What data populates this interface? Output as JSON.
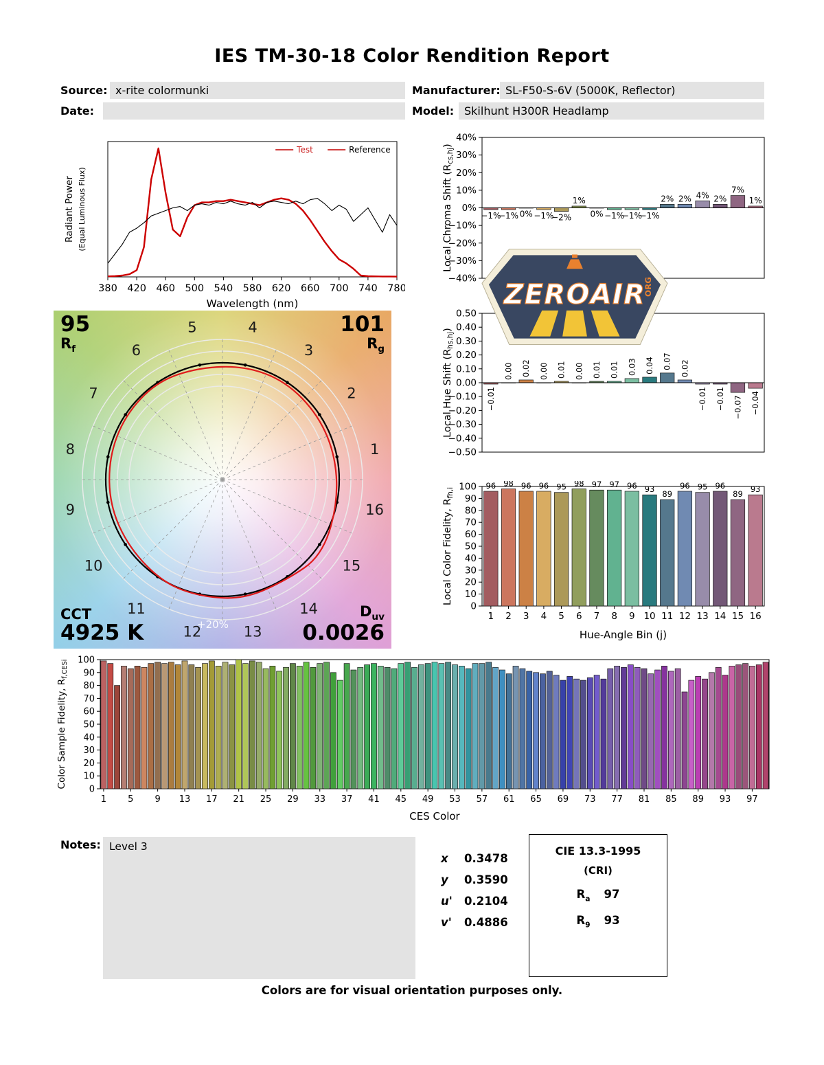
{
  "title": "IES TM-30-18 Color Rendition Report",
  "header": {
    "source_label": "Source:",
    "source_value": "x-rite colormunki",
    "manufacturer_label": "Manufacturer:",
    "manufacturer_value": "SL-F50-S-6V (5000K, Reflector)",
    "date_label": "Date:",
    "date_value": "",
    "model_label": "Model:",
    "model_value": "Skilhunt H300R Headlamp"
  },
  "logo": {
    "text": "ZEROAIR",
    "suffix": "ORG"
  },
  "cvg": {
    "rf_value": "95",
    "rf_label": "R_{f}",
    "rg_value": "101",
    "rg_label": "R_{g}",
    "cct_label": "CCT",
    "cct_value": "4925 K",
    "duv_label": "D_{uv}",
    "duv_value": "0.0026",
    "ring_label": "+20%",
    "bins": [
      1,
      2,
      3,
      4,
      5,
      6,
      7,
      8,
      9,
      10,
      11,
      12,
      13,
      14,
      15,
      16
    ]
  },
  "notes": {
    "label": "Notes:",
    "value": "Level 3"
  },
  "chromaticity": {
    "rows": [
      {
        "label": "x",
        "value": "0.3478"
      },
      {
        "label": "y",
        "value": "0.3590"
      },
      {
        "label": "u'",
        "value": "0.2104"
      },
      {
        "label": "v'",
        "value": "0.4886"
      }
    ]
  },
  "cri_box": {
    "title": "CIE 13.3-1995",
    "subtitle": "(CRI)",
    "ra_label": "R_{a}",
    "ra_value": "97",
    "r9_label": "R_{9}",
    "r9_value": "93"
  },
  "footer": "Colors are for visual orientation purposes only.",
  "bin_colors": [
    "#A35C60",
    "#CC765E",
    "#CC8145",
    "#D8AC62",
    "#AC9959",
    "#919E5D",
    "#668B5E",
    "#61B290",
    "#7BBEA1",
    "#297A7E",
    "#55788D",
    "#708AB2",
    "#988CAA",
    "#735877",
    "#8F6682",
    "#BA7A8E"
  ],
  "chart_data": [
    {
      "id": "spd",
      "type": "line",
      "xlabel": "Wavelength (nm)",
      "ylabel1": "Radiant Power",
      "ylabel2": "(Equal Luminous Flux)",
      "xlim": [
        380,
        780
      ],
      "ylim": [
        0,
        1.0
      ],
      "xticks": [
        380,
        420,
        460,
        500,
        540,
        580,
        620,
        660,
        700,
        740,
        780
      ],
      "series": [
        {
          "name": "Test",
          "color": "#cc0000",
          "width": 2.4,
          "x": [
            380,
            390,
            400,
            410,
            420,
            430,
            440,
            450,
            460,
            470,
            480,
            490,
            500,
            510,
            520,
            530,
            540,
            550,
            560,
            570,
            580,
            590,
            600,
            610,
            620,
            630,
            640,
            650,
            660,
            670,
            680,
            690,
            700,
            710,
            720,
            730,
            740,
            750,
            760,
            770,
            780
          ],
          "y": [
            0.004,
            0.006,
            0.01,
            0.02,
            0.05,
            0.22,
            0.72,
            0.95,
            0.62,
            0.35,
            0.3,
            0.44,
            0.53,
            0.55,
            0.55,
            0.56,
            0.56,
            0.57,
            0.56,
            0.55,
            0.54,
            0.53,
            0.55,
            0.57,
            0.58,
            0.57,
            0.54,
            0.49,
            0.42,
            0.34,
            0.26,
            0.19,
            0.13,
            0.1,
            0.06,
            0.01,
            0.005,
            0.004,
            0.003,
            0.003,
            0.002
          ]
        },
        {
          "name": "Reference",
          "color": "#000000",
          "width": 1.1,
          "x": [
            380,
            390,
            400,
            410,
            420,
            430,
            440,
            450,
            460,
            470,
            480,
            490,
            500,
            510,
            520,
            530,
            540,
            550,
            560,
            570,
            580,
            590,
            600,
            610,
            620,
            630,
            640,
            650,
            660,
            670,
            680,
            690,
            700,
            710,
            720,
            730,
            740,
            750,
            760,
            770,
            780
          ],
          "y": [
            0.1,
            0.17,
            0.24,
            0.33,
            0.36,
            0.4,
            0.45,
            0.47,
            0.49,
            0.51,
            0.52,
            0.49,
            0.53,
            0.54,
            0.53,
            0.55,
            0.54,
            0.56,
            0.54,
            0.53,
            0.55,
            0.51,
            0.55,
            0.56,
            0.55,
            0.54,
            0.56,
            0.54,
            0.57,
            0.58,
            0.54,
            0.49,
            0.53,
            0.5,
            0.41,
            0.46,
            0.51,
            0.42,
            0.33,
            0.46,
            0.38
          ]
        }
      ],
      "legend": [
        {
          "label": "Test",
          "line_color": "#cc2222",
          "text_color": "#cc2222"
        },
        {
          "label": "Reference",
          "line_color": "#cc2222",
          "text_color": "#000000"
        }
      ]
    },
    {
      "id": "chroma_shift",
      "type": "bar",
      "ylabel": "Local Chroma Shift (R_{cs,hj})",
      "categories": [
        1,
        2,
        3,
        4,
        5,
        6,
        7,
        8,
        9,
        10,
        11,
        12,
        13,
        14,
        15,
        16
      ],
      "values": [
        -1,
        -1,
        0,
        -1,
        -2,
        1,
        0,
        -1,
        -1,
        -1,
        2,
        2,
        4,
        2,
        7,
        1
      ],
      "labels": [
        "−1%",
        "−1%",
        "0%",
        "−1%",
        "−2%",
        "1%",
        "0%",
        "−1%",
        "−1%",
        "−1%",
        "2%",
        "2%",
        "4%",
        "2%",
        "7%",
        "1%"
      ],
      "ylim": [
        -40,
        40
      ],
      "yticks": [
        [
          40,
          "40%"
        ],
        [
          30,
          "30%"
        ],
        [
          20,
          "20%"
        ],
        [
          10,
          "10%"
        ],
        [
          0,
          "0%"
        ],
        [
          -10,
          "−10%"
        ],
        [
          -20,
          "−20%"
        ],
        [
          -30,
          "−30%"
        ],
        [
          -40,
          "−40%"
        ]
      ]
    },
    {
      "id": "hue_shift",
      "type": "bar",
      "ylabel": "Local Hue Shift (R_{hs,hj})",
      "categories": [
        1,
        2,
        3,
        4,
        5,
        6,
        7,
        8,
        9,
        10,
        11,
        12,
        13,
        14,
        15,
        16
      ],
      "values": [
        -0.01,
        0.0,
        0.02,
        0.0,
        0.01,
        0.0,
        0.01,
        0.01,
        0.03,
        0.04,
        0.07,
        0.02,
        -0.01,
        -0.01,
        -0.07,
        -0.04
      ],
      "labels": [
        "−0.01",
        "0.00",
        "0.02",
        "0.00",
        "0.01",
        "0.00",
        "0.01",
        "0.01",
        "0.03",
        "0.04",
        "0.07",
        "0.02",
        "−0.01",
        "−0.01",
        "−0.07",
        "−0.04"
      ],
      "ylim": [
        -0.5,
        0.5
      ],
      "yticks": [
        [
          0.5,
          "0.50"
        ],
        [
          0.4,
          "0.40"
        ],
        [
          0.3,
          "0.30"
        ],
        [
          0.2,
          "0.20"
        ],
        [
          0.1,
          "0.10"
        ],
        [
          0,
          "0.00"
        ],
        [
          -0.1,
          "−0.10"
        ],
        [
          -0.2,
          "−0.20"
        ],
        [
          -0.3,
          "−0.30"
        ],
        [
          -0.4,
          "−0.40"
        ],
        [
          -0.5,
          "−0.50"
        ]
      ]
    },
    {
      "id": "local_fidelity",
      "type": "bar",
      "xlabel": "Hue-Angle Bin (j)",
      "ylabel": "Local Color Fidelity, R_{fh,i}",
      "categories": [
        1,
        2,
        3,
        4,
        5,
        6,
        7,
        8,
        9,
        10,
        11,
        12,
        13,
        14,
        15,
        16
      ],
      "values": [
        96,
        98,
        96,
        96,
        95,
        98,
        97,
        97,
        96,
        93,
        89,
        96,
        95,
        96,
        89,
        93
      ],
      "labels": [
        "96",
        "98",
        "96",
        "96",
        "95",
        "98",
        "97",
        "97",
        "96",
        "93",
        "89",
        "96",
        "95",
        "96",
        "89",
        "93"
      ],
      "ylim": [
        0,
        100
      ],
      "yticks": [
        [
          100,
          "100"
        ],
        [
          90,
          "90"
        ],
        [
          80,
          "80"
        ],
        [
          70,
          "70"
        ],
        [
          60,
          "60"
        ],
        [
          50,
          "50"
        ],
        [
          40,
          "40"
        ],
        [
          30,
          "30"
        ],
        [
          20,
          "20"
        ],
        [
          10,
          "10"
        ],
        [
          0,
          "0"
        ]
      ],
      "xticklabels": [
        "1",
        "2",
        "3",
        "4",
        "5",
        "6",
        "7",
        "8",
        "9",
        "10",
        "11",
        "12",
        "13",
        "14",
        "15",
        "16"
      ],
      "xtickindex": [
        0,
        1,
        2,
        3,
        4,
        5,
        6,
        7,
        8,
        9,
        10,
        11,
        12,
        13,
        14,
        15
      ]
    },
    {
      "id": "ces_fidelity",
      "type": "bar",
      "xlabel": "CES Color",
      "ylabel": "Color Sample Fidelity, R_{f,CESi}",
      "values": [
        99,
        97,
        80,
        95,
        93,
        95,
        94,
        97,
        98,
        97,
        98,
        96,
        99,
        96,
        94,
        97,
        99,
        95,
        98,
        96,
        100,
        97,
        99,
        98,
        93,
        95,
        91,
        94,
        97,
        95,
        98,
        94,
        97,
        98,
        90,
        84,
        97,
        92,
        94,
        96,
        97,
        95,
        94,
        93,
        97,
        98,
        94,
        96,
        97,
        98,
        97,
        98,
        96,
        95,
        93,
        97,
        97,
        98,
        94,
        92,
        89,
        95,
        93,
        91,
        90,
        89,
        91,
        88,
        84,
        87,
        85,
        84,
        86,
        88,
        85,
        93,
        95,
        94,
        96,
        94,
        93,
        89,
        92,
        95,
        91,
        93,
        75,
        84,
        87,
        85,
        90,
        94,
        88,
        95,
        96,
        97,
        95,
        96,
        98
      ],
      "ylim": [
        0,
        100
      ],
      "yticks": [
        [
          100,
          "100"
        ],
        [
          90,
          "90"
        ],
        [
          80,
          "80"
        ],
        [
          70,
          "70"
        ],
        [
          60,
          "60"
        ],
        [
          50,
          "50"
        ],
        [
          40,
          "40"
        ],
        [
          30,
          "30"
        ],
        [
          20,
          "20"
        ],
        [
          10,
          "10"
        ],
        [
          0,
          "0"
        ]
      ],
      "xticklabels": [
        "1",
        "5",
        "9",
        "13",
        "17",
        "21",
        "25",
        "29",
        "33",
        "37",
        "41",
        "45",
        "49",
        "53",
        "57",
        "61",
        "65",
        "69",
        "73",
        "77",
        "81",
        "85",
        "89",
        "93",
        "97"
      ],
      "xtickindex": [
        0,
        4,
        8,
        12,
        16,
        20,
        24,
        28,
        32,
        36,
        40,
        44,
        48,
        52,
        56,
        60,
        64,
        68,
        72,
        76,
        80,
        84,
        88,
        92,
        96
      ]
    }
  ]
}
